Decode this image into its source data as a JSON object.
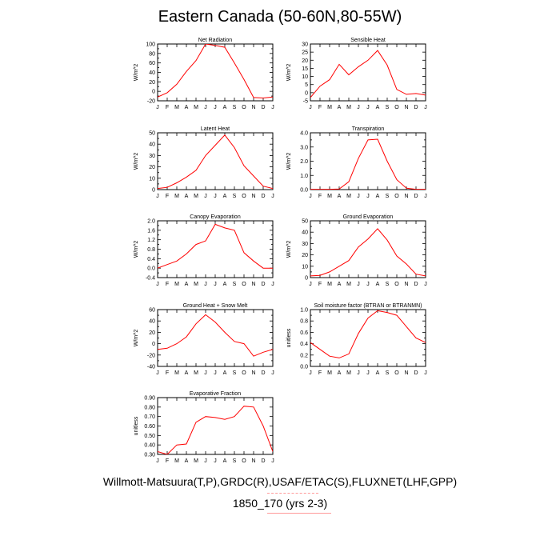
{
  "page": {
    "title": "Eastern Canada (50-60N,80-55W)",
    "footer_line1": "Willmott-Matsuura(T,P),GRDC(R),USAF/ETAC(S),FLUXNET(LHF,GPP)",
    "footer_line2": "1850_170 (yrs 2-3)"
  },
  "style": {
    "line_color": "#ff0000",
    "axis_color": "#000000"
  },
  "chart_data": [
    {
      "type": "line",
      "title": "Net Radiation",
      "ylabel": "W/m^2",
      "categories": [
        "J",
        "F",
        "M",
        "A",
        "M",
        "J",
        "J",
        "A",
        "S",
        "O",
        "N",
        "D",
        "J"
      ],
      "ylim": [
        -20,
        100
      ],
      "yticks": [
        -20,
        -10,
        0,
        10,
        20,
        30,
        40,
        50,
        60,
        70,
        80,
        90,
        100
      ],
      "ytick_labels": [
        "-20",
        "",
        "0",
        "",
        "20",
        "",
        "40",
        "",
        "60",
        "",
        "80",
        "",
        "100"
      ],
      "values": [
        -12,
        -3,
        15,
        42,
        65,
        100,
        97,
        93,
        60,
        25,
        -13,
        -14,
        -12
      ]
    },
    {
      "type": "line",
      "title": "Sensible Heat",
      "ylabel": "W/m^2",
      "categories": [
        "J",
        "F",
        "M",
        "A",
        "M",
        "J",
        "J",
        "A",
        "S",
        "O",
        "N",
        "D",
        "J"
      ],
      "ylim": [
        -5,
        30
      ],
      "yticks": [
        -5,
        0,
        5,
        10,
        15,
        20,
        25,
        30
      ],
      "ytick_labels": [
        "-5",
        "0",
        "5",
        "10",
        "15",
        "20",
        "25",
        "30"
      ],
      "values": [
        -3,
        4,
        8,
        17.5,
        11,
        16,
        20,
        26,
        17,
        2,
        -1,
        -0.5,
        -1.5
      ]
    },
    {
      "type": "line",
      "title": "Latent Heat",
      "ylabel": "W/m^2",
      "categories": [
        "J",
        "F",
        "M",
        "A",
        "M",
        "J",
        "J",
        "A",
        "S",
        "O",
        "N",
        "D",
        "J"
      ],
      "ylim": [
        0,
        50
      ],
      "yticks": [
        0,
        5,
        10,
        15,
        20,
        25,
        30,
        35,
        40,
        45,
        50
      ],
      "ytick_labels": [
        "0",
        "",
        "10",
        "",
        "20",
        "",
        "30",
        "",
        "40",
        "",
        "50"
      ],
      "values": [
        1,
        2,
        6,
        11,
        17,
        30,
        39,
        48,
        37,
        21,
        12,
        3,
        1
      ]
    },
    {
      "type": "line",
      "title": "Transpiration",
      "ylabel": "W/m^2",
      "categories": [
        "J",
        "F",
        "M",
        "A",
        "M",
        "J",
        "J",
        "A",
        "S",
        "O",
        "N",
        "D",
        "J"
      ],
      "ylim": [
        0,
        4
      ],
      "yticks": [
        0,
        0.5,
        1,
        1.5,
        2,
        2.5,
        3,
        3.5,
        4
      ],
      "ytick_labels": [
        "0.0",
        "",
        "1.0",
        "",
        "2.0",
        "",
        "3.0",
        "",
        "4.0"
      ],
      "values": [
        0.02,
        0.02,
        0.02,
        0.04,
        0.55,
        2.2,
        3.5,
        3.55,
        2.0,
        0.7,
        0.1,
        0.02,
        0.02
      ]
    },
    {
      "type": "line",
      "title": "Canopy Evaporation",
      "ylabel": "W/m^2",
      "categories": [
        "J",
        "F",
        "M",
        "A",
        "M",
        "J",
        "J",
        "A",
        "S",
        "O",
        "N",
        "D",
        "J"
      ],
      "ylim": [
        -0.4,
        2.0
      ],
      "yticks": [
        -0.4,
        -0.2,
        0,
        0.2,
        0.4,
        0.6,
        0.8,
        1.0,
        1.2,
        1.4,
        1.6,
        1.8,
        2.0
      ],
      "ytick_labels": [
        "-0.4",
        "",
        "0.0",
        "",
        "0.4",
        "",
        "0.8",
        "",
        "1.2",
        "",
        "1.6",
        "",
        "2.0"
      ],
      "values": [
        0.0,
        0.15,
        0.3,
        0.6,
        1.0,
        1.15,
        1.85,
        1.7,
        1.6,
        0.65,
        0.3,
        0.0,
        0.0
      ]
    },
    {
      "type": "line",
      "title": "Ground Evaporation",
      "ylabel": "W/m^2",
      "categories": [
        "J",
        "F",
        "M",
        "A",
        "M",
        "J",
        "J",
        "A",
        "S",
        "O",
        "N",
        "D",
        "J"
      ],
      "ylim": [
        0,
        50
      ],
      "yticks": [
        0,
        5,
        10,
        15,
        20,
        25,
        30,
        35,
        40,
        45,
        50
      ],
      "ytick_labels": [
        "0",
        "",
        "10",
        "",
        "20",
        "",
        "30",
        "",
        "40",
        "",
        "50"
      ],
      "values": [
        1.5,
        2,
        5,
        10,
        15,
        27,
        34,
        43,
        33,
        19,
        12,
        3,
        1.5
      ]
    },
    {
      "type": "line",
      "title": "Ground Heat + Snow Melt",
      "ylabel": "W/m^2",
      "categories": [
        "J",
        "F",
        "M",
        "A",
        "M",
        "J",
        "J",
        "A",
        "S",
        "O",
        "N",
        "D",
        "J"
      ],
      "ylim": [
        -40,
        60
      ],
      "yticks": [
        -40,
        -30,
        -20,
        -10,
        0,
        10,
        20,
        30,
        40,
        50,
        60
      ],
      "ytick_labels": [
        "-40",
        "",
        "-20",
        "",
        "0",
        "",
        "20",
        "",
        "40",
        "",
        "60"
      ],
      "values": [
        -10,
        -8,
        0,
        12,
        35,
        51,
        38,
        20,
        4,
        0,
        -22,
        -15,
        -10
      ]
    },
    {
      "type": "line",
      "title": "Soil moisture factor (BTRAN or BTRANMN)",
      "ylabel": "unitless",
      "categories": [
        "J",
        "F",
        "M",
        "A",
        "M",
        "J",
        "J",
        "A",
        "S",
        "O",
        "N",
        "D",
        "J"
      ],
      "ylim": [
        0,
        1.0
      ],
      "yticks": [
        0,
        0.1,
        0.2,
        0.3,
        0.4,
        0.5,
        0.6,
        0.7,
        0.8,
        0.9,
        1.0
      ],
      "ytick_labels": [
        "0.0",
        "",
        "0.2",
        "",
        "0.4",
        "",
        "0.6",
        "",
        "0.8",
        "",
        "1.0"
      ],
      "values": [
        0.42,
        0.3,
        0.18,
        0.15,
        0.22,
        0.58,
        0.85,
        0.98,
        0.95,
        0.9,
        0.7,
        0.5,
        0.42
      ]
    },
    {
      "type": "line",
      "title": "Evaporative Fraction",
      "ylabel": "unitless",
      "categories": [
        "J",
        "F",
        "M",
        "A",
        "M",
        "J",
        "J",
        "A",
        "S",
        "O",
        "N",
        "D",
        "J"
      ],
      "ylim": [
        0.3,
        0.9
      ],
      "yticks": [
        0.3,
        0.4,
        0.5,
        0.6,
        0.7,
        0.8,
        0.9
      ],
      "ytick_labels": [
        "0.30",
        "0.40",
        "0.50",
        "0.60",
        "0.70",
        "0.80",
        "0.90"
      ],
      "values": [
        0.33,
        0.3,
        0.4,
        0.41,
        0.64,
        0.7,
        0.69,
        0.67,
        0.7,
        0.81,
        0.8,
        0.6,
        0.33
      ]
    }
  ]
}
